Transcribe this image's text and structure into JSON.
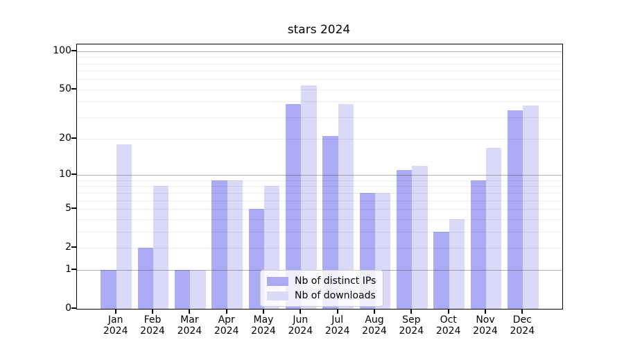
{
  "chart_data": {
    "type": "bar",
    "title": "stars 2024",
    "categories": [
      "Jan",
      "Feb",
      "Mar",
      "Apr",
      "May",
      "Jun",
      "Jul",
      "Aug",
      "Sep",
      "Oct",
      "Nov",
      "Dec"
    ],
    "category_year_line": "2024",
    "series": [
      {
        "name": "Nb of distinct IPs",
        "color": "#aaaaf5",
        "values": [
          1,
          2,
          1,
          9,
          5,
          38,
          21,
          7,
          11,
          3,
          9,
          34
        ]
      },
      {
        "name": "Nb of downloads",
        "color": "#dadaf8",
        "values": [
          18,
          8,
          1,
          9,
          8,
          54,
          38,
          7,
          12,
          4,
          17,
          37
        ]
      }
    ],
    "y_axis": {
      "scale": "log1p",
      "tick_labels": [
        "0",
        "1",
        "2",
        "5",
        "10",
        "20",
        "50",
        "100"
      ],
      "tick_values": [
        0,
        1,
        2,
        5,
        10,
        20,
        50,
        100
      ],
      "max": 113,
      "major_gridline_values": [
        1,
        10,
        100
      ],
      "minor_gridline_values": [
        2,
        3,
        4,
        5,
        6,
        7,
        8,
        9,
        20,
        30,
        40,
        50,
        60,
        70,
        80,
        90
      ]
    },
    "xlabel": "",
    "ylabel": "",
    "grid": true,
    "legend_position": "lower-center-left-inside"
  },
  "colors": {
    "background": "#ffffff",
    "spine": "#000000",
    "major_grid": "#9a9a9a",
    "minor_grid": "#e8e8e8",
    "text": "#000000",
    "legend_border": "#cccccc"
  }
}
